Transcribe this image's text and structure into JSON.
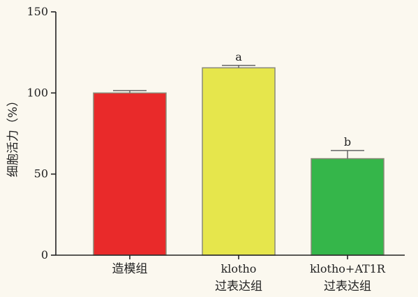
{
  "chart_data": {
    "type": "bar",
    "ylabel": "细胞活力（%）",
    "ylim": [
      0,
      150
    ],
    "yticks": [
      0,
      50,
      100,
      150
    ],
    "grid": false,
    "categories": [
      {
        "lines": [
          "造模组"
        ]
      },
      {
        "lines": [
          "klotho",
          "过表达组"
        ]
      },
      {
        "lines": [
          "klotho+AT1R",
          "过表达组"
        ]
      }
    ],
    "values": [
      100,
      115.5,
      59.5
    ],
    "errors": [
      1.5,
      1.5,
      5
    ],
    "annotations": [
      "",
      "a",
      "b"
    ],
    "colors": [
      "#e92a2a",
      "#e6e64c",
      "#35b64a"
    ]
  }
}
